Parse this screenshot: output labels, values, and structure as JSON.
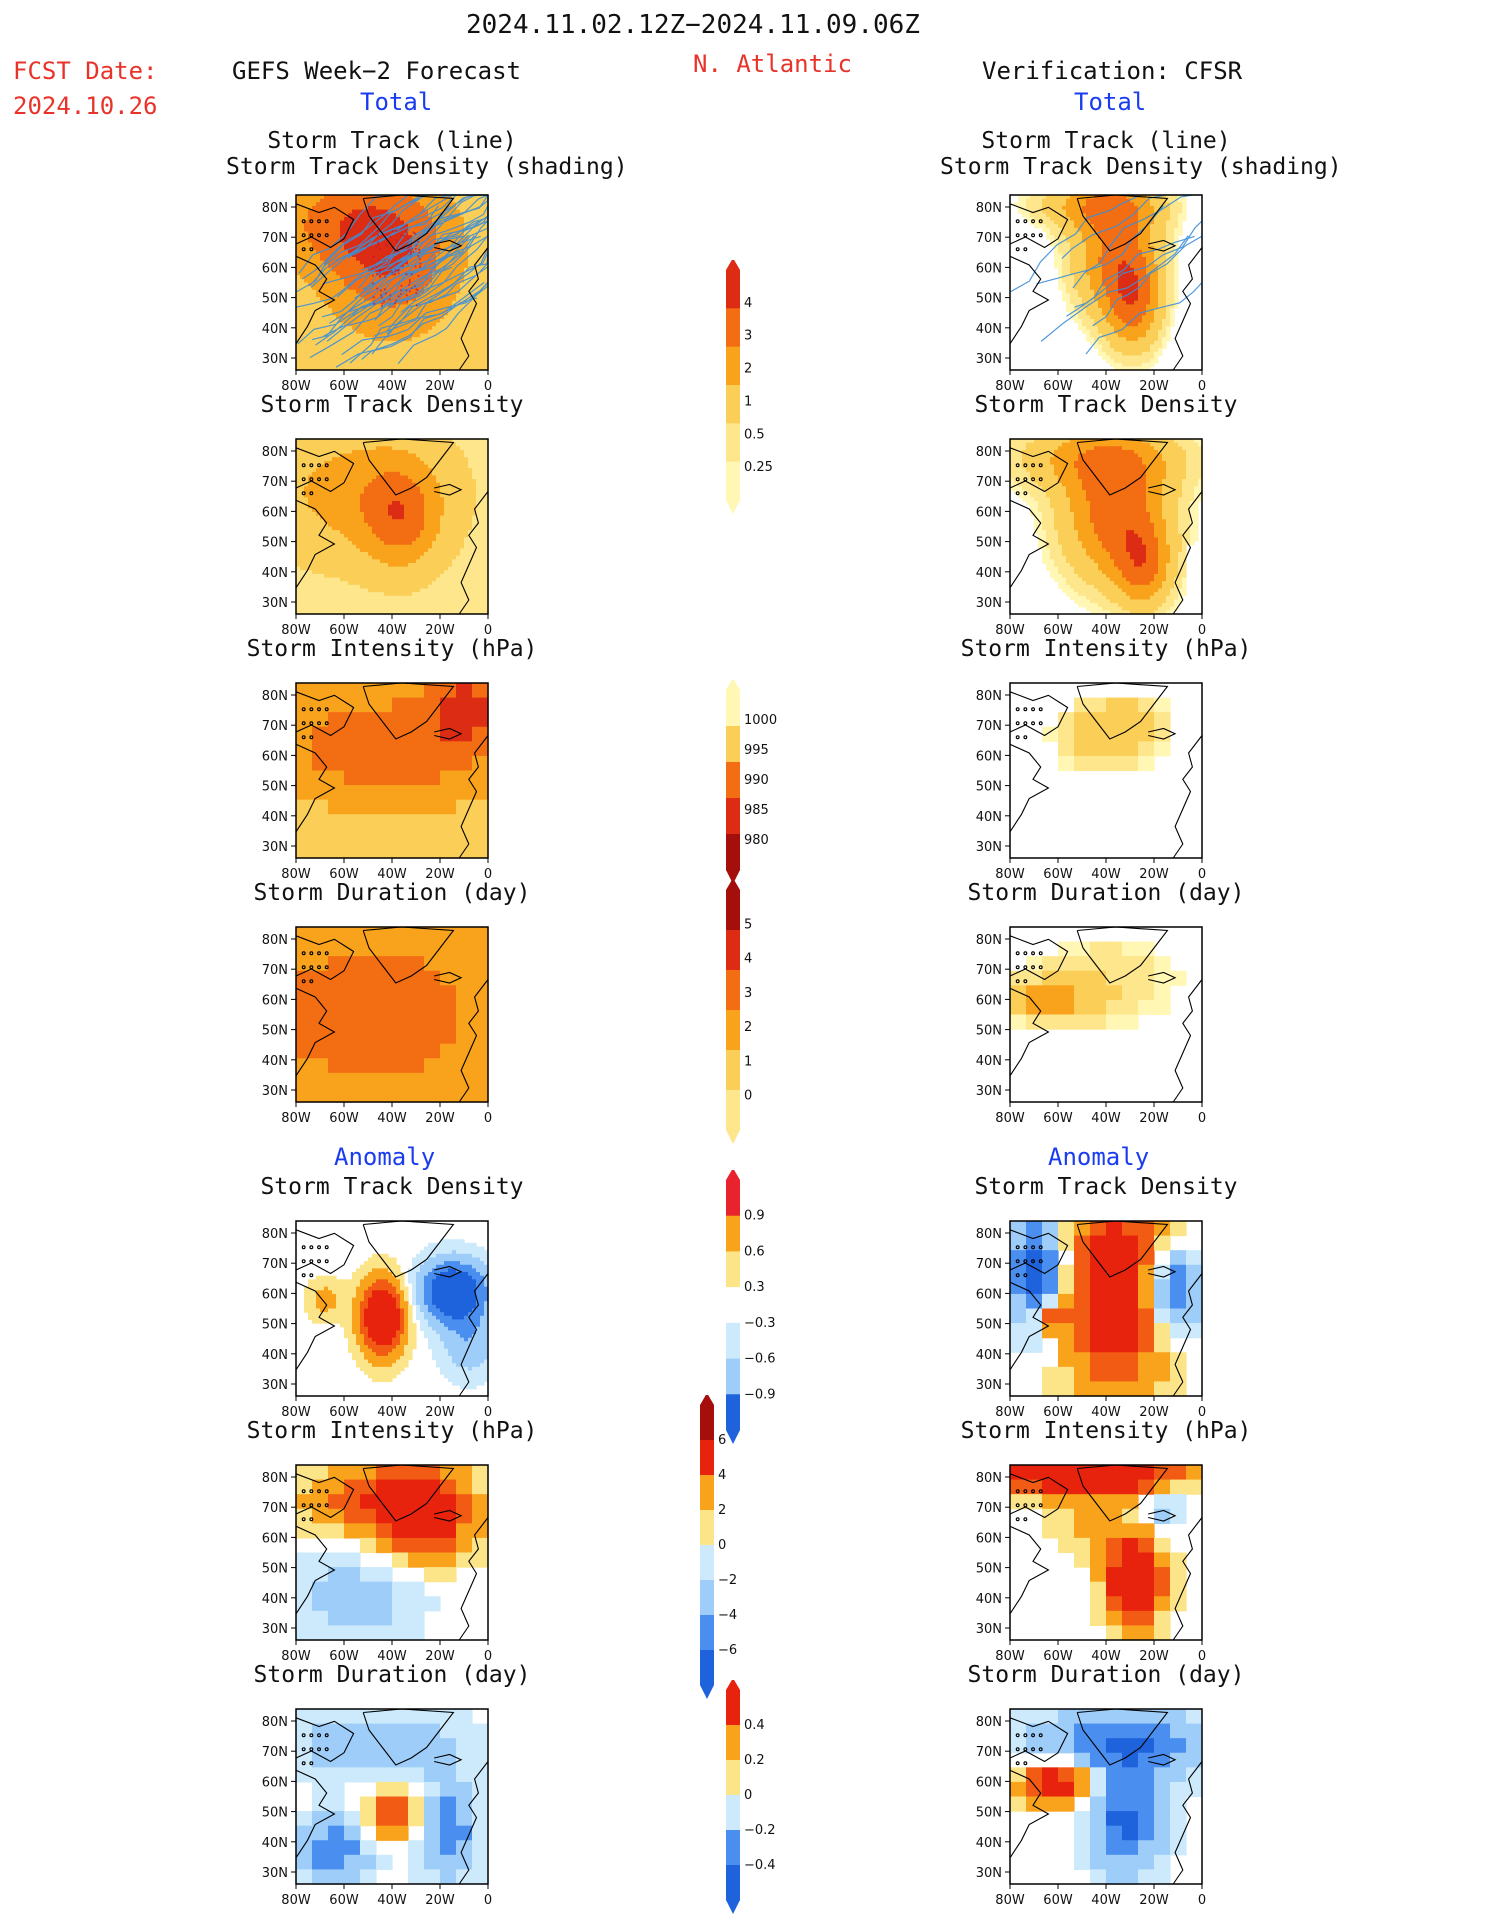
{
  "header": {
    "period": "2024.11.02.12Z−2024.11.09.06Z",
    "fcst_label": "FCST Date:",
    "fcst_date": "2024.10.26",
    "left_title": "GEFS Week−2 Forecast",
    "region": "N. Atlantic",
    "right_title": "Verification: CFSR",
    "total_label": "Total",
    "anomaly_label": "Anomaly"
  },
  "panels": {
    "track_line": "Storm Track (line)",
    "track_shading": "Storm Track Density (shading)",
    "density": "Storm Track Density",
    "intensity": "Storm Intensity (hPa)",
    "duration": "Storm Duration (day)"
  },
  "axes": {
    "lat_ticks": [
      "80N",
      "70N",
      "60N",
      "50N",
      "40N",
      "30N"
    ],
    "lon_ticks": [
      "80W",
      "60W",
      "40W",
      "20W",
      "0"
    ]
  },
  "colorbars": {
    "density_total": [
      "4",
      "3",
      "2",
      "1",
      "0.5",
      "0.25"
    ],
    "intensity_total": [
      "1000",
      "995",
      "990",
      "985",
      "980"
    ],
    "duration_total": [
      "5",
      "4",
      "3",
      "2",
      "1",
      "0"
    ],
    "density_anom": [
      "0.9",
      "0.6",
      "0.3",
      "−0.3",
      "−0.6",
      "−0.9"
    ],
    "intensity_anom": [
      "6",
      "4",
      "2",
      "0",
      "−2",
      "−4",
      "−6"
    ],
    "duration_anom": [
      "0.4",
      "0.2",
      "0",
      "−0.2",
      "−0.4"
    ]
  },
  "colors": {
    "total_scale": [
      "#fff7b3",
      "#fde68b",
      "#fbcf57",
      "#f9a21b",
      "#f36d12",
      "#dd2c14",
      "#a50f0b"
    ],
    "anom_scale": [
      "#1e63dc",
      "#4a8ff0",
      "#9dcdf8",
      "#cdeafc",
      "#ffffff",
      "#fce588",
      "#f9a21b",
      "#f25b14",
      "#e8230d"
    ],
    "track_line": "#3d8fd8",
    "title_red": "#e8332a",
    "title_blue": "#1a3cf0"
  }
}
